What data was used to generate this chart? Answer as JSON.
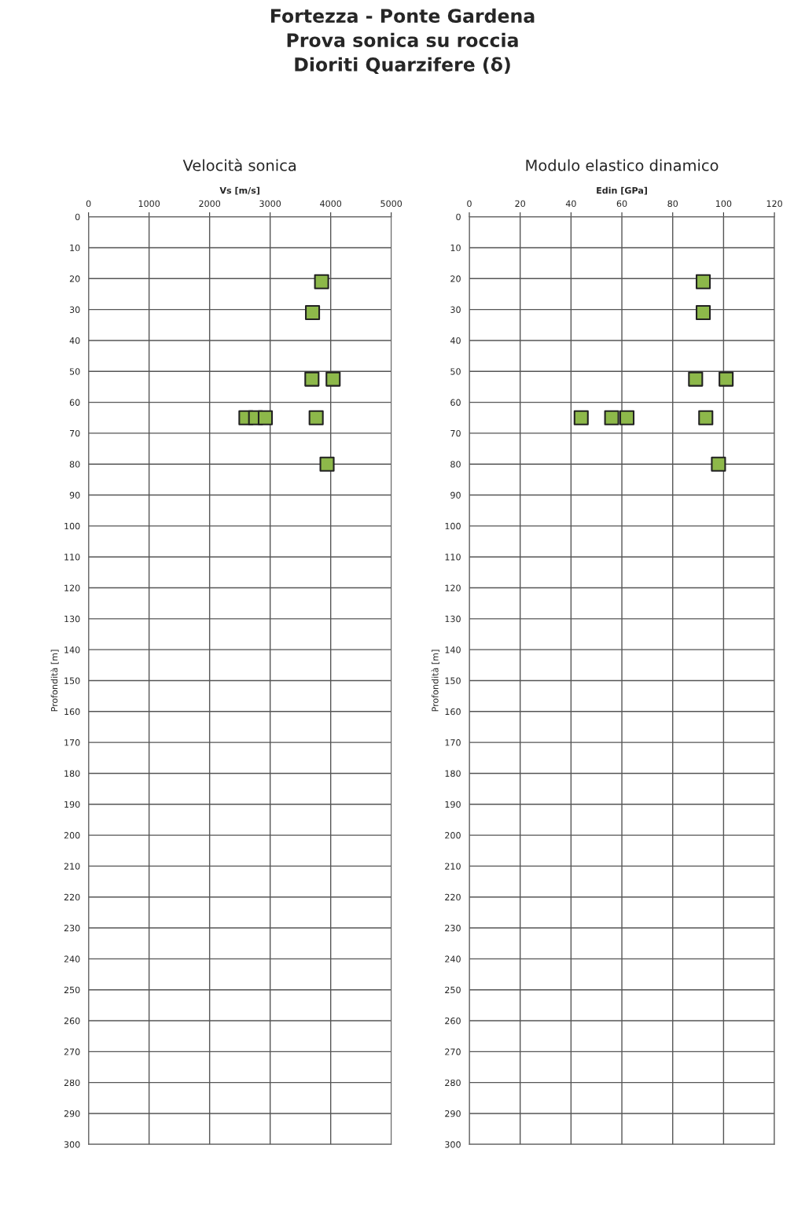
{
  "chart_data": [
    {
      "type": "scatter",
      "title": "Fortezza - Ponte Gardena\nProva sonica su roccia\nDioriti Quarzifere (δ)",
      "subtitle": "Velocità sonica",
      "xlabel": "Vs [m/s]",
      "ylabel": "Profondità [m]",
      "series": [
        {
          "color": "#8db84a",
          "x": [
            3850,
            3700,
            3690,
            4040,
            2600,
            2760,
            2920,
            3760,
            3940
          ],
          "values": [
            21,
            31,
            52.5,
            52.5,
            65,
            65,
            65,
            65,
            80
          ]
        }
      ],
      "xlim": [
        0,
        5000
      ],
      "xticks": [
        0,
        1000,
        2000,
        3000,
        4000,
        5000
      ],
      "ylim": [
        300,
        0
      ],
      "yticks": [
        0,
        10,
        20,
        30,
        40,
        50,
        60,
        70,
        80,
        90,
        100,
        110,
        120,
        130,
        140,
        150,
        160,
        170,
        180,
        190,
        200,
        210,
        220,
        230,
        240,
        250,
        260,
        270,
        280,
        290,
        300
      ],
      "grid": true,
      "marker": "square"
    },
    {
      "type": "scatter",
      "title": "Modulo elastico dinamico",
      "xlabel": "Edin [GPa]",
      "ylabel": "Profondità [m]",
      "series": [
        {
          "color": "#8db84a",
          "x": [
            92,
            92,
            89,
            101,
            44,
            56,
            62,
            93,
            98
          ],
          "values": [
            21,
            31,
            52.5,
            52.5,
            65,
            65,
            65,
            65,
            80
          ]
        }
      ],
      "xlim": [
        0,
        120
      ],
      "xticks": [
        0,
        20,
        40,
        60,
        80,
        100,
        120
      ],
      "ylim": [
        300,
        0
      ],
      "yticks": [
        0,
        10,
        20,
        30,
        40,
        50,
        60,
        70,
        80,
        90,
        100,
        110,
        120,
        130,
        140,
        150,
        160,
        170,
        180,
        190,
        200,
        210,
        220,
        230,
        240,
        250,
        260,
        270,
        280,
        290,
        300
      ],
      "grid": true,
      "marker": "square"
    }
  ]
}
